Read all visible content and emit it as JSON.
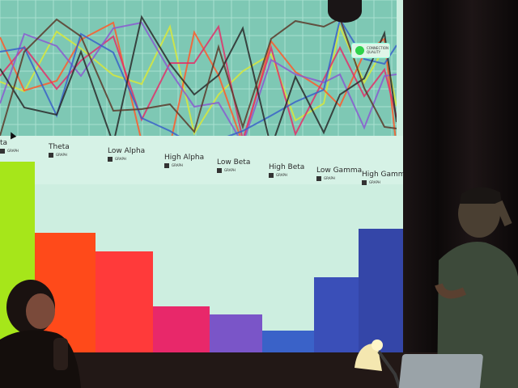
{
  "scene": {
    "description_free": true,
    "bands": [
      {
        "label": "ta",
        "tag": "GRAPH",
        "color": "#a6e61a",
        "level": 0.96
      },
      {
        "label": "Theta",
        "tag": "GRAPH",
        "color": "#ff4a1a",
        "level": 0.6
      },
      {
        "label": "Low Alpha",
        "tag": "GRAPH",
        "color": "#ff3a3a",
        "level": 0.51
      },
      {
        "label": "High Alpha",
        "tag": "GRAPH",
        "color": "#e8286a",
        "level": 0.23
      },
      {
        "label": "Low Beta",
        "tag": "GRAPH",
        "color": "#7a55c8",
        "level": 0.19
      },
      {
        "label": "High Beta",
        "tag": "GRAPH",
        "color": "#3a62c8",
        "level": 0.11
      },
      {
        "label": "Low Gamma",
        "tag": "GRAPH",
        "color": "#3a4fb8",
        "level": 0.38
      },
      {
        "label": "High Gamma",
        "tag": "GRAPH",
        "color": "#3446a8",
        "level": 0.62
      }
    ],
    "status_badge": {
      "line1": "CONNECTION",
      "line2": "QUALITY",
      "color": "#2fd24a"
    },
    "line_colors": [
      "#d8e83a",
      "#ff5a2a",
      "#e0306a",
      "#8a5ad0",
      "#3a62c8",
      "#2a2a2a",
      "#5a3a2a"
    ]
  }
}
